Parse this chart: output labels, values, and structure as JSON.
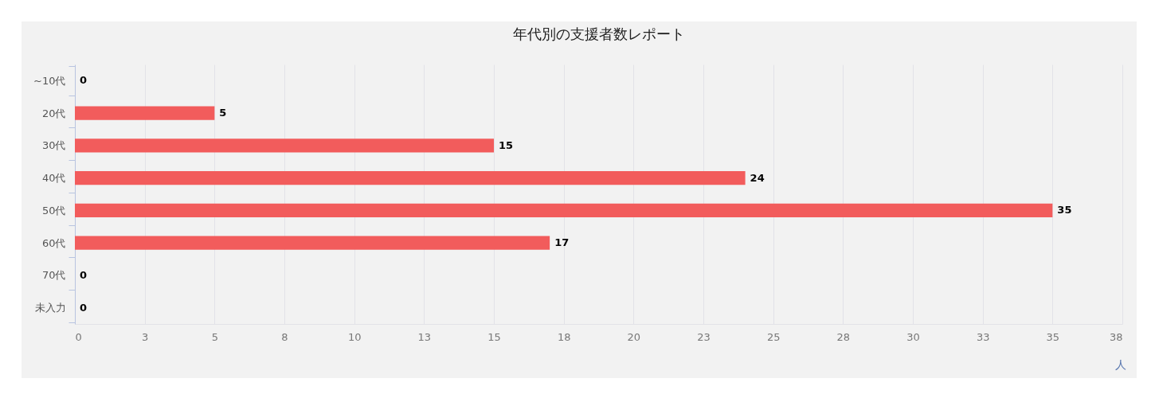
{
  "chart_data": {
    "type": "bar",
    "orientation": "horizontal",
    "title": "年代別の支援者数レポート",
    "xlabel": "人",
    "categories": [
      "~10代",
      "20代",
      "30代",
      "40代",
      "50代",
      "60代",
      "70代",
      "未入力"
    ],
    "values": [
      0,
      5,
      15,
      24,
      35,
      17,
      0,
      0
    ],
    "color": "#f25c5c",
    "xlim": [
      0,
      37.5
    ],
    "xticks": [
      0,
      {
        "value": 2.5,
        "label": "3"
      },
      5,
      {
        "value": 7.5,
        "label": "8"
      },
      10,
      {
        "value": 12.5,
        "label": "13"
      },
      15,
      {
        "value": 17.5,
        "label": "18"
      },
      20,
      {
        "value": 22.5,
        "label": "23"
      },
      25,
      {
        "value": 27.5,
        "label": "28"
      },
      30,
      {
        "value": 32.5,
        "label": "33"
      },
      35,
      {
        "value": 37.5,
        "label": "38"
      }
    ],
    "grid": "x",
    "data_labels": true
  }
}
